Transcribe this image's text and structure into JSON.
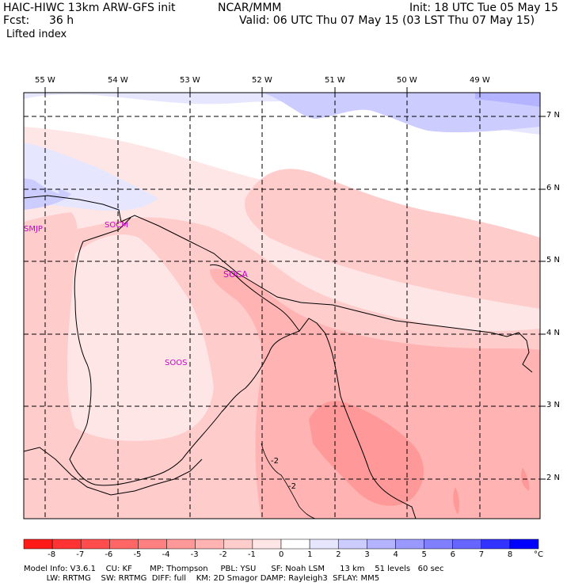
{
  "header": {
    "model": "HAIC-HIWC 13km ARW-GFS init",
    "org": "NCAR/MMM",
    "init": "Init: 18 UTC Tue 05 May 15",
    "fcst_label": "Fcst:",
    "fcst_value": "36 h",
    "valid": "Valid: 06 UTC Thu 07 May 15 (03 LST Thu 07 May 15)",
    "field": "Lifted index"
  },
  "map": {
    "lon_labels": [
      "55 W",
      "54 W",
      "53 W",
      "52 W",
      "51 W",
      "50 W",
      "49 W"
    ],
    "lat_labels": [
      "7 N",
      "6 N",
      "5 N",
      "4 N",
      "3 N",
      "2 N"
    ],
    "stations": [
      "SMJP",
      "SOCM",
      "SOCA",
      "SOOS"
    ],
    "contour_labels": [
      "-2",
      "-2"
    ]
  },
  "colorbar": {
    "ticks": [
      "-8",
      "-7",
      "-6",
      "-5",
      "-4",
      "-3",
      "-2",
      "-1",
      "0",
      "1",
      "2",
      "3",
      "4",
      "5",
      "6",
      "7",
      "8"
    ],
    "unit": "°C",
    "colors": [
      "#ff1a1a",
      "#ff3333",
      "#ff4d4d",
      "#ff6666",
      "#ff8080",
      "#ff9999",
      "#ffb3b3",
      "#ffcccc",
      "#ffe6e6",
      "#ffffff",
      "#e6e6ff",
      "#ccccff",
      "#b3b3ff",
      "#9999ff",
      "#8080ff",
      "#6666ff",
      "#3333ff",
      "#0000ff"
    ]
  },
  "footer": {
    "line1": "Model Info: V3.6.1    CU: KF       MP: Thompson     PBL: YSU      SF: Noah LSM      13 km    51 levels   60 sec",
    "line2": "         LW: RRTMG    SW: RRTMG  DIFF: full    KM: 2D Smagor DAMP: Rayleigh3  SFLAY: MM5"
  }
}
